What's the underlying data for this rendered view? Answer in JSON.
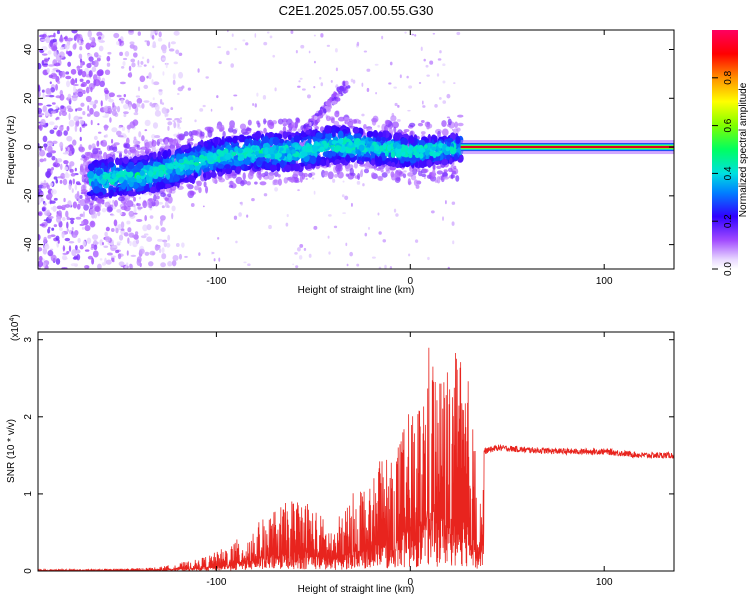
{
  "figure": {
    "title": "C2E1.2025.057.00.55.G30"
  },
  "chart_data": [
    {
      "type": "heatmap",
      "xlabel": "Height of straight line (km)",
      "ylabel": "Frequency (Hz)",
      "xlim": [
        -192,
        136
      ],
      "ylim": [
        -50,
        48
      ],
      "xticks": [
        -100,
        0,
        100
      ],
      "yticks": [
        -40,
        -20,
        0,
        20,
        40
      ],
      "colorbar": {
        "label": "Normalized spectral amplitude",
        "range": [
          0,
          1
        ],
        "ticks": [
          0.0,
          0.2,
          0.4,
          0.6,
          0.8
        ]
      },
      "ridge": {
        "x": [
          -160,
          -140,
          -120,
          -100,
          -80,
          -60,
          -40,
          -20,
          0,
          20,
          26
        ],
        "y": [
          -13,
          -12,
          -8,
          -4,
          -2,
          -2,
          1,
          0,
          -2,
          -1,
          0
        ]
      },
      "band": {
        "x_start": 26,
        "x_end": 136,
        "frequency": 0
      },
      "branch": {
        "x": [
          -55,
          -32
        ],
        "y": [
          6,
          26
        ]
      }
    },
    {
      "type": "line",
      "xlabel": "Height of straight line (km)",
      "ylabel": "SNR (10 * v/v)",
      "scale_label": "(x10",
      "scale_exp": "4",
      "scale_close": ")",
      "xlim": [
        -192,
        136
      ],
      "ylim": [
        0,
        3.1
      ],
      "xticks": [
        -100,
        0,
        100
      ],
      "yticks": [
        0,
        1,
        2,
        3
      ],
      "color": "#e8241e",
      "envelope": {
        "x": [
          -192,
          -150,
          -130,
          -120,
          -110,
          -100,
          -90,
          -80,
          -70,
          -60,
          -55,
          -50,
          -45,
          -40,
          -35,
          -30,
          -25,
          -20,
          -15,
          -10,
          -5,
          0,
          5,
          10,
          15,
          20,
          25,
          30,
          35,
          38,
          45,
          60,
          80,
          100,
          120,
          136
        ],
        "y": [
          0.02,
          0.03,
          0.05,
          0.1,
          0.15,
          0.25,
          0.4,
          0.6,
          0.8,
          0.95,
          1.0,
          0.85,
          0.7,
          0.55,
          0.8,
          1.0,
          1.2,
          1.05,
          1.7,
          1.4,
          1.8,
          2.1,
          2.3,
          3.05,
          2.6,
          2.75,
          2.9,
          2.5,
          1.3,
          1.55,
          1.6,
          1.57,
          1.55,
          1.55,
          1.5,
          1.5
        ]
      }
    }
  ]
}
